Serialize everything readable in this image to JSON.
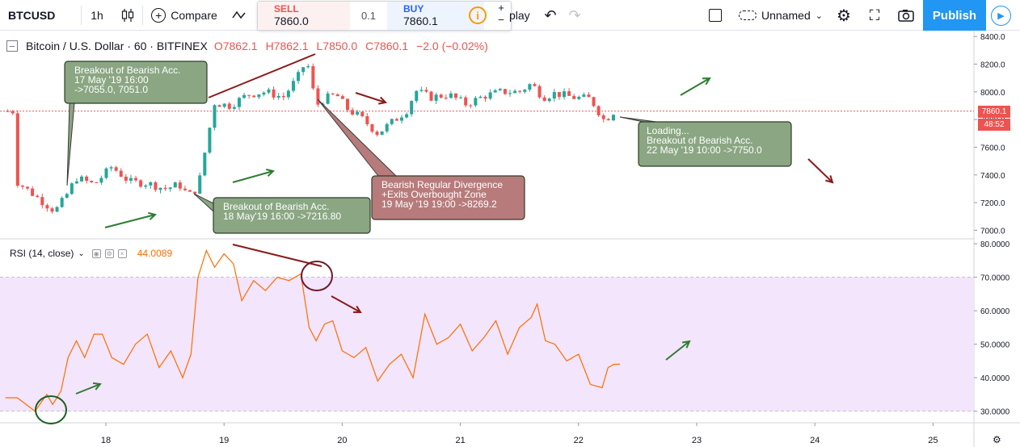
{
  "toolbar": {
    "symbol": "BTCUSD",
    "interval": "1h",
    "compare_label": "Compare",
    "sell_label": "SELL",
    "sell_price": "7860.0",
    "spread": "0.1",
    "buy_label": "BUY",
    "buy_price": "7860.1",
    "info_glyph": "i",
    "replay_label": "play",
    "layout_name": "Unnamed",
    "publish_label": "Publish"
  },
  "icons": {
    "candles": "candlestick-icon",
    "indicators": "indicators-icon",
    "undo": "undo-icon",
    "redo": "redo-icon",
    "camera": "camera-icon",
    "settings": "gear-icon",
    "fullscreen": "fullscreen-icon",
    "play": "play-icon"
  },
  "legend": {
    "title": "Bitcoin / U.S. Dollar · 60 · BITFINEX",
    "open": "O7862.1",
    "high": "H7862.1",
    "low": "L7850.0",
    "close": "C7860.1",
    "change": "−2.0 (−0.02%)"
  },
  "rsi_legend": {
    "name": "RSI (14, close)",
    "value": "44.0089"
  },
  "last_price": {
    "price": "7860.1",
    "countdown": "48:52",
    "color": "#ef5350"
  },
  "colors": {
    "up": "#26a69a",
    "down": "#ef5350",
    "rsi_line": "#ff6d00",
    "rsi_band": "#f3e5fb",
    "green_box": "#8aa682",
    "red_box": "#b77b7b",
    "green_arrow": "#2e7d32",
    "red_arrow": "#8b1a1a"
  },
  "annotations": [
    {
      "id": "a1",
      "lines": [
        "Breakout of Bearish Acc.",
        "17 May '19 16:00",
        "->7055.0, 7051.0"
      ]
    },
    {
      "id": "a2",
      "lines": [
        "Breakout of Bearish Acc.",
        "18 May'19 16:00 ->7216.80"
      ]
    },
    {
      "id": "a3",
      "lines": [
        "Bearish Regular Divergence",
        "+Exits Overbought Zone",
        "19 May '19 19:00 ->8269.2"
      ]
    },
    {
      "id": "a4",
      "lines": [
        "Loading...",
        "Breakout of Bearish Acc.",
        "22 May '19 10:00 ->7750.0"
      ]
    }
  ],
  "chart_data": [
    {
      "type": "candlestick",
      "title": "Bitcoin / U.S. Dollar · 60 · BITFINEX",
      "x_ticks": [
        "18",
        "19",
        "20",
        "21",
        "22",
        "23",
        "24",
        "25"
      ],
      "y_ticks": [
        "8400.0",
        "8200.0",
        "8000.0",
        "7800.0",
        "7600.0",
        "7400.0",
        "7200.0",
        "7000.0"
      ],
      "ylim": [
        6950,
        8430
      ],
      "xlim": [
        17.15,
        25.75
      ],
      "series": [
        {
          "x": [
            17.25,
            17.55,
            17.58,
            17.65,
            17.75,
            17.9,
            18.05,
            18.2,
            18.35,
            18.5,
            18.62,
            18.7,
            18.78,
            18.85,
            18.92,
            19.05,
            19.2,
            19.35,
            19.5,
            19.62,
            19.7,
            19.78,
            19.85,
            19.95,
            20.05,
            20.15,
            20.3,
            20.45,
            20.55,
            20.62,
            20.75,
            20.9,
            21.05,
            21.2,
            21.35,
            21.5,
            21.6,
            21.7,
            21.8,
            21.95,
            22.1,
            22.22,
            22.3
          ],
          "close": [
            7350,
            7150,
            7150,
            7230,
            7380,
            7330,
            7460,
            7350,
            7340,
            7300,
            7330,
            7250,
            7310,
            7620,
            7920,
            7900,
            7980,
            8000,
            7960,
            8100,
            8230,
            7900,
            7950,
            7980,
            7870,
            7820,
            7700,
            7800,
            7870,
            8010,
            7960,
            7980,
            7910,
            7970,
            8000,
            8000,
            8060,
            7960,
            7990,
            7960,
            7950,
            7790,
            7860.1
          ]
        }
      ]
    },
    {
      "type": "line",
      "title": "RSI (14, close)",
      "y_ticks": [
        "80.0000",
        "70.0000",
        "60.0000",
        "50.0000",
        "40.0000",
        "30.0000"
      ],
      "ylim": [
        27,
        81
      ],
      "band": [
        30,
        70
      ],
      "series": [
        {
          "name": "RSI (14, close)",
          "x": [
            17.15,
            17.25,
            17.4,
            17.5,
            17.55,
            17.62,
            17.68,
            17.75,
            17.82,
            17.9,
            17.97,
            18.05,
            18.15,
            18.25,
            18.35,
            18.45,
            18.55,
            18.65,
            18.72,
            18.78,
            18.85,
            18.92,
            19.0,
            19.08,
            19.15,
            19.25,
            19.35,
            19.45,
            19.55,
            19.65,
            19.72,
            19.78,
            19.85,
            19.92,
            20.0,
            20.1,
            20.2,
            20.3,
            20.4,
            20.5,
            20.6,
            20.7,
            20.8,
            20.9,
            21.0,
            21.1,
            21.2,
            21.3,
            21.4,
            21.5,
            21.6,
            21.65,
            21.72,
            21.8,
            21.9,
            22.0,
            22.1,
            22.2,
            22.25,
            22.3,
            22.35
          ],
          "values": [
            34,
            34,
            30,
            35,
            32,
            36,
            46,
            51,
            46,
            53,
            53,
            46,
            44,
            50,
            53,
            43,
            48,
            40,
            47,
            70,
            78,
            73,
            77,
            74,
            63,
            69,
            66,
            70,
            69,
            71,
            55,
            51,
            56,
            57,
            48,
            46,
            49,
            39,
            44,
            47,
            40,
            59,
            50,
            52,
            56,
            48,
            52,
            57,
            47,
            55,
            58,
            62,
            51,
            50,
            45,
            47,
            38,
            37,
            43,
            44,
            44.01
          ]
        }
      ]
    }
  ]
}
